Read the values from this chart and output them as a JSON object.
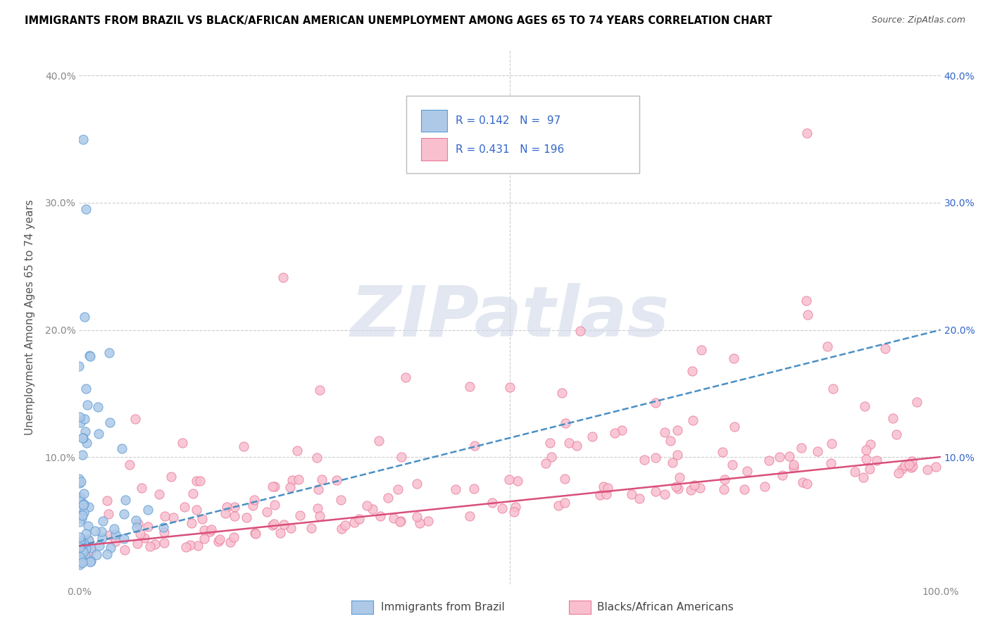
{
  "title": "IMMIGRANTS FROM BRAZIL VS BLACK/AFRICAN AMERICAN UNEMPLOYMENT AMONG AGES 65 TO 74 YEARS CORRELATION CHART",
  "source": "Source: ZipAtlas.com",
  "ylabel": "Unemployment Among Ages 65 to 74 years",
  "xlim": [
    0.0,
    1.0
  ],
  "ylim": [
    0.0,
    0.42
  ],
  "xticks": [
    0.0,
    0.1,
    0.2,
    0.3,
    0.4,
    0.5,
    0.6,
    0.7,
    0.8,
    0.9,
    1.0
  ],
  "xticklabels": [
    "0.0%",
    "",
    "",
    "",
    "",
    "",
    "",
    "",
    "",
    "",
    "100.0%"
  ],
  "yticks": [
    0.0,
    0.1,
    0.2,
    0.3,
    0.4
  ],
  "yticklabels_left": [
    "",
    "10.0%",
    "20.0%",
    "30.0%",
    "40.0%"
  ],
  "yticklabels_right": [
    "",
    "10.0%",
    "20.0%",
    "30.0%",
    "40.0%"
  ],
  "series1_facecolor": "#aec9e8",
  "series1_edgecolor": "#5b9bd5",
  "series2_facecolor": "#f9bfcf",
  "series2_edgecolor": "#e87a9a",
  "trend1_color": "#4a90c4",
  "trend2_color": "#d94f7a",
  "trend1_start_y": 0.03,
  "trend1_end_y": 0.2,
  "trend2_start_y": 0.03,
  "trend2_end_y": 0.1,
  "R1": 0.142,
  "N1": 97,
  "R2": 0.431,
  "N2": 196,
  "legend_label1": "Immigrants from Brazil",
  "legend_label2": "Blacks/African Americans",
  "watermark": "ZIPatlas",
  "background_color": "#ffffff",
  "grid_color": "#cccccc",
  "title_color": "#000000",
  "axis_label_color": "#555555",
  "tick_color_left": "#888888",
  "tick_color_right": "#3366cc",
  "legend_text_color": "#3366cc"
}
